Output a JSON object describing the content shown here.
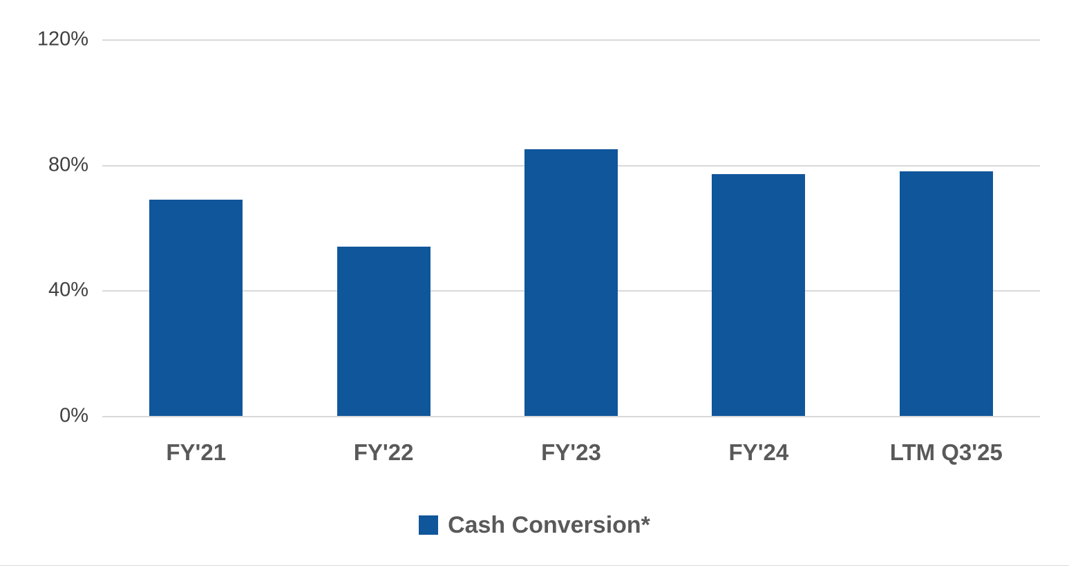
{
  "chart_data": {
    "type": "bar",
    "title": "",
    "categories": [
      "FY'21",
      "FY'22",
      "FY'23",
      "FY'24",
      "LTM Q3'25"
    ],
    "series": [
      {
        "name": "Cash Conversion*",
        "values": [
          69,
          54,
          85,
          77,
          78
        ]
      }
    ],
    "xlabel": "",
    "ylabel": "",
    "ylim": [
      0,
      120
    ],
    "yticks": [
      0,
      40,
      80,
      120
    ],
    "ytick_labels": [
      "0%",
      "40%",
      "80%",
      "120%"
    ],
    "grid": true,
    "legend_position": "bottom",
    "bar_color": "#10569B",
    "gridline_color": "#D9D9D9"
  },
  "legend": {
    "label": "Cash Conversion*"
  }
}
